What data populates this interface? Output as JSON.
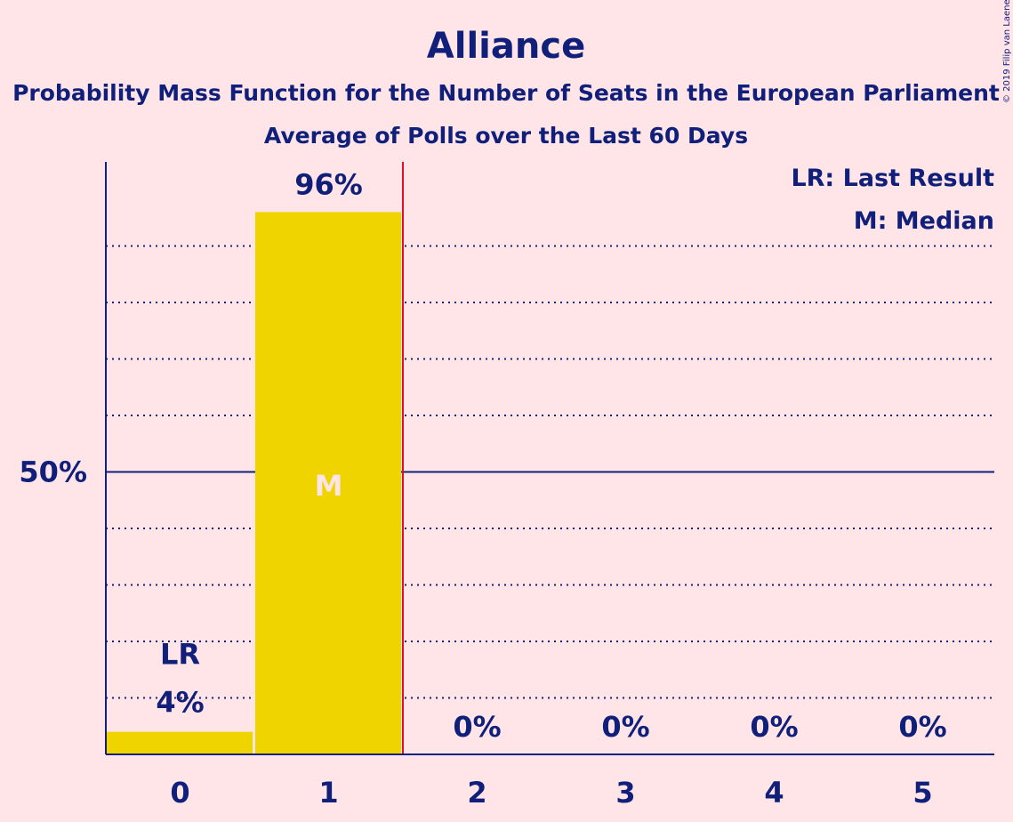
{
  "chart_data": {
    "type": "bar",
    "title": "Alliance",
    "subtitle": "Probability Mass Function for the Number of Seats in the European Parliament",
    "subtitle2": "Average of Polls over the Last 60 Days",
    "categories": [
      "0",
      "1",
      "2",
      "3",
      "4",
      "5"
    ],
    "values": [
      4,
      96,
      0,
      0,
      0,
      0
    ],
    "value_labels": [
      "4%",
      "96%",
      "0%",
      "0%",
      "0%",
      "0%"
    ],
    "ylim": [
      0,
      105
    ],
    "y_major_tick": {
      "value": 50,
      "label": "50%"
    },
    "y_minor_grid": [
      10,
      20,
      30,
      40,
      60,
      70,
      80,
      90
    ],
    "last_result": {
      "category_index": 0,
      "label": "LR"
    },
    "median": {
      "category_index": 1,
      "label": "M"
    },
    "legend": [
      "LR: Last Result",
      "M: Median"
    ],
    "legend_position": "top-right",
    "colors": {
      "bar": "#f0d400",
      "axis": "#10207a",
      "median_line": "#e0102a",
      "background": "#ffe4e8"
    },
    "copyright": "© 2019 Filip van Laenen"
  }
}
